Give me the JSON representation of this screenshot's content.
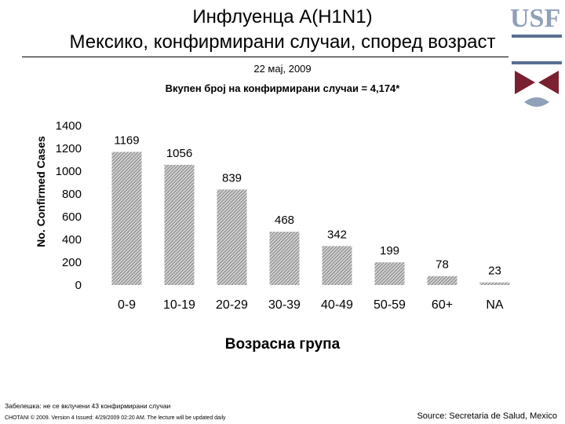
{
  "header": {
    "title_line1": "Инфлуенца А(H1N1)",
    "title_line2": "Мексико, конфирмирани случаи, според возраст",
    "date": "22 мај, 2009",
    "total": "Вкупен број на конфирмирани случаи = 4,174*"
  },
  "logo": {
    "letters": "USF"
  },
  "footer": {
    "note": "Забелешка: не се вклучени 43 конфирмирани случаи",
    "copyright": "CHOTANI © 2009. Version 4 Issued: 4/29/2009 02:20 AM. The lecture will be updated daily",
    "source": "Source: Secretaria de Salud, Mexico"
  },
  "chart_data": {
    "type": "bar",
    "categories": [
      "0-9",
      "10-19",
      "20-29",
      "30-39",
      "40-49",
      "50-59",
      "60+",
      "NA"
    ],
    "values": [
      1169,
      1056,
      839,
      468,
      342,
      199,
      78,
      23
    ],
    "ylabel": "No. Confirmed Cases",
    "xlabel": "Возрасна група",
    "ylim": [
      0,
      1400
    ],
    "yticks": [
      0,
      200,
      400,
      600,
      800,
      1000,
      1200,
      1400
    ],
    "grid": false,
    "legend": "none",
    "bar_fill": "hatched gray"
  }
}
